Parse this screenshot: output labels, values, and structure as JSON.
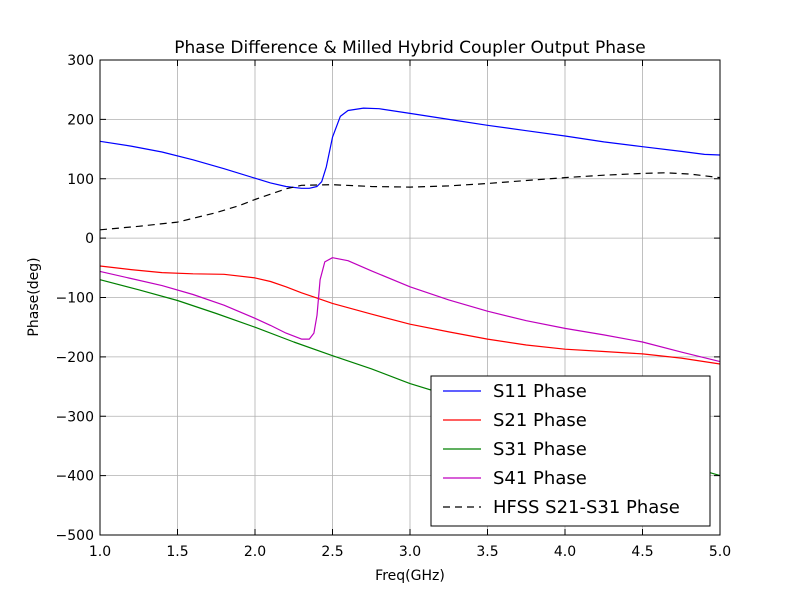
{
  "chart_data": {
    "type": "line",
    "title": "Phase Difference & Milled Hybrid Coupler Output Phase",
    "xlabel": "Freq(GHz)",
    "ylabel": "Phase(deg)",
    "xlim": [
      1.0,
      5.0
    ],
    "ylim": [
      -500,
      300
    ],
    "xticks": [
      "1.0",
      "1.5",
      "2.0",
      "2.5",
      "3.0",
      "3.5",
      "4.0",
      "4.5",
      "5.0"
    ],
    "yticks": [
      "300",
      "200",
      "100",
      "0",
      "−100",
      "−200",
      "−300",
      "−400",
      "−500"
    ],
    "grid": true,
    "legend_position": "lower-right",
    "series": [
      {
        "name": "S11 Phase",
        "color": "#0000ff",
        "dash": "solid",
        "points": [
          [
            1.0,
            163
          ],
          [
            1.2,
            155
          ],
          [
            1.4,
            145
          ],
          [
            1.6,
            132
          ],
          [
            1.8,
            117
          ],
          [
            2.0,
            101
          ],
          [
            2.1,
            93
          ],
          [
            2.2,
            87
          ],
          [
            2.3,
            84
          ],
          [
            2.35,
            84
          ],
          [
            2.4,
            87
          ],
          [
            2.43,
            95
          ],
          [
            2.46,
            120
          ],
          [
            2.5,
            170
          ],
          [
            2.55,
            205
          ],
          [
            2.6,
            215
          ],
          [
            2.7,
            219
          ],
          [
            2.8,
            218
          ],
          [
            3.0,
            210
          ],
          [
            3.25,
            200
          ],
          [
            3.5,
            190
          ],
          [
            3.75,
            181
          ],
          [
            4.0,
            172
          ],
          [
            4.25,
            162
          ],
          [
            4.5,
            154
          ],
          [
            4.75,
            146
          ],
          [
            4.9,
            141
          ],
          [
            5.0,
            140
          ]
        ]
      },
      {
        "name": "S21 Phase",
        "color": "#ff0000",
        "dash": "solid",
        "points": [
          [
            1.0,
            -47
          ],
          [
            1.2,
            -53
          ],
          [
            1.4,
            -58
          ],
          [
            1.6,
            -60
          ],
          [
            1.8,
            -61
          ],
          [
            2.0,
            -67
          ],
          [
            2.1,
            -73
          ],
          [
            2.2,
            -82
          ],
          [
            2.3,
            -92
          ],
          [
            2.4,
            -101
          ],
          [
            2.5,
            -110
          ],
          [
            2.75,
            -128
          ],
          [
            3.0,
            -145
          ],
          [
            3.25,
            -158
          ],
          [
            3.5,
            -170
          ],
          [
            3.75,
            -180
          ],
          [
            4.0,
            -187
          ],
          [
            4.25,
            -191
          ],
          [
            4.5,
            -195
          ],
          [
            4.75,
            -202
          ],
          [
            5.0,
            -212
          ]
        ]
      },
      {
        "name": "S31 Phase",
        "color": "#008000",
        "dash": "solid",
        "points": [
          [
            1.0,
            -70
          ],
          [
            1.25,
            -87
          ],
          [
            1.5,
            -105
          ],
          [
            1.75,
            -127
          ],
          [
            2.0,
            -150
          ],
          [
            2.25,
            -175
          ],
          [
            2.5,
            -198
          ],
          [
            2.75,
            -220
          ],
          [
            3.0,
            -245
          ],
          [
            3.25,
            -265
          ],
          [
            3.5,
            -285
          ],
          [
            4.0,
            -322
          ],
          [
            4.5,
            -362
          ],
          [
            5.0,
            -400
          ]
        ]
      },
      {
        "name": "S41 Phase",
        "color": "#bf00bf",
        "dash": "solid",
        "points": [
          [
            1.0,
            -56
          ],
          [
            1.2,
            -68
          ],
          [
            1.4,
            -80
          ],
          [
            1.6,
            -95
          ],
          [
            1.8,
            -113
          ],
          [
            2.0,
            -135
          ],
          [
            2.1,
            -147
          ],
          [
            2.2,
            -160
          ],
          [
            2.3,
            -170
          ],
          [
            2.35,
            -170
          ],
          [
            2.38,
            -160
          ],
          [
            2.4,
            -130
          ],
          [
            2.42,
            -70
          ],
          [
            2.45,
            -40
          ],
          [
            2.5,
            -33
          ],
          [
            2.6,
            -38
          ],
          [
            2.75,
            -55
          ],
          [
            3.0,
            -82
          ],
          [
            3.25,
            -104
          ],
          [
            3.5,
            -123
          ],
          [
            3.75,
            -139
          ],
          [
            4.0,
            -152
          ],
          [
            4.25,
            -163
          ],
          [
            4.5,
            -175
          ],
          [
            4.75,
            -192
          ],
          [
            5.0,
            -208
          ]
        ]
      },
      {
        "name": "HFSS S21-S31 Phase",
        "color": "#000000",
        "dash": "dashed",
        "points": [
          [
            1.0,
            14
          ],
          [
            1.25,
            20
          ],
          [
            1.5,
            27
          ],
          [
            1.75,
            43
          ],
          [
            1.9,
            55
          ],
          [
            2.0,
            65
          ],
          [
            2.2,
            83
          ],
          [
            2.3,
            89
          ],
          [
            2.5,
            90
          ],
          [
            2.75,
            87
          ],
          [
            3.0,
            86
          ],
          [
            3.25,
            88
          ],
          [
            3.5,
            92
          ],
          [
            3.75,
            97
          ],
          [
            4.0,
            102
          ],
          [
            4.25,
            106
          ],
          [
            4.5,
            109
          ],
          [
            4.65,
            110
          ],
          [
            4.8,
            108
          ],
          [
            5.0,
            102
          ]
        ]
      }
    ]
  }
}
